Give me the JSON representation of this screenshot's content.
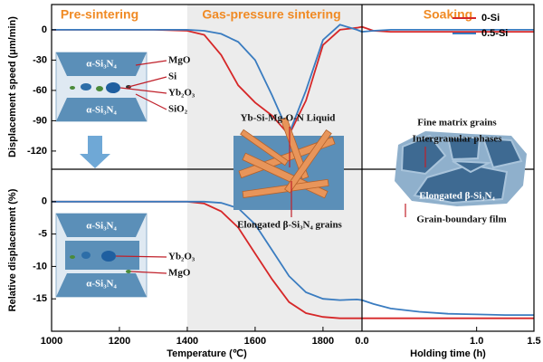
{
  "chart_data": [
    {
      "type": "line",
      "ylabel": "Displacement speed (μm/min)",
      "x": [
        1000,
        1100,
        1200,
        1300,
        1400,
        1450,
        1500,
        1550,
        1600,
        1650,
        1700,
        1750,
        1800,
        1850,
        1900,
        1915
      ],
      "xlim": [
        1000,
        1915
      ],
      "ylim": [
        -138,
        25
      ],
      "yticks": [
        0,
        -30,
        -60,
        -90,
        -120
      ],
      "background_span": [
        1400,
        1915
      ],
      "series": [
        {
          "color": "#d62728",
          "values": [
            0,
            0,
            0,
            0,
            -1,
            -5,
            -25,
            -55,
            -72,
            -85,
            -104,
            -70,
            -15,
            0,
            2,
            3
          ]
        },
        {
          "color": "#3a7cc0",
          "values": [
            0,
            0,
            0,
            0,
            0,
            -1,
            -4,
            -12,
            -30,
            -65,
            -103,
            -60,
            -10,
            5,
            0,
            -2
          ]
        }
      ]
    },
    {
      "type": "line",
      "legend": "upper right",
      "x": [
        0,
        0.1,
        0.25,
        0.5,
        0.75,
        1.0,
        1.25,
        1.5
      ],
      "xlim": [
        0,
        1.5
      ],
      "ylim": [
        -138,
        25
      ],
      "series": [
        {
          "name": "0-Si",
          "color": "#d62728",
          "values": [
            3,
            -1,
            -2,
            -2,
            -2,
            -2,
            -2,
            -2
          ]
        },
        {
          "name": "0.5-Si",
          "color": "#3a7cc0",
          "values": [
            -2,
            -1,
            0,
            0,
            0,
            0,
            0,
            0
          ]
        }
      ]
    },
    {
      "type": "line",
      "xlabel": "Temperature (℃)",
      "ylabel": "Relative displacement (%)",
      "x": [
        1000,
        1100,
        1200,
        1300,
        1400,
        1450,
        1500,
        1550,
        1600,
        1650,
        1700,
        1750,
        1800,
        1850,
        1900,
        1915
      ],
      "xlim": [
        1000,
        1915
      ],
      "xticks": [
        1000,
        1200,
        1400,
        1600,
        1800
      ],
      "ylim": [
        -20,
        5
      ],
      "yticks": [
        0,
        -5,
        -10,
        -15
      ],
      "background_span": [
        1400,
        1915
      ],
      "series": [
        {
          "color": "#d62728",
          "values": [
            0,
            0,
            0,
            0,
            0,
            -0.3,
            -1.5,
            -4,
            -8,
            -12,
            -15.5,
            -17.2,
            -17.8,
            -18,
            -18,
            -18
          ]
        },
        {
          "color": "#3a7cc0",
          "values": [
            0,
            0,
            0,
            0,
            0,
            0,
            -0.2,
            -1,
            -3.5,
            -7.5,
            -11.5,
            -14,
            -15,
            -15.2,
            -15.1,
            -15.2
          ]
        }
      ]
    },
    {
      "type": "line",
      "xlabel": "Holding time (h)",
      "x": [
        0,
        0.1,
        0.25,
        0.5,
        0.75,
        1.0,
        1.25,
        1.5
      ],
      "xlim": [
        0,
        1.5
      ],
      "xticks": [
        {
          "value": 0,
          "label": "0.0"
        },
        {
          "value": 1,
          "label": "1.0"
        },
        1.5
      ],
      "ylim": [
        -20,
        5
      ],
      "series": [
        {
          "color": "#d62728",
          "values": [
            -18,
            -18,
            -18,
            -18,
            -18,
            -18,
            -18,
            -18
          ]
        },
        {
          "color": "#3a7cc0",
          "values": [
            -15.2,
            -15.8,
            -16.5,
            -17,
            -17.3,
            -17.4,
            -17.5,
            -17.5
          ]
        }
      ]
    }
  ],
  "phases": [
    "Pre-sintering",
    "Gas-pressure sintering",
    "Soaking"
  ],
  "top_left_schematic": [
    "α-Si₃N₄",
    "α-Si₃N₄",
    "MgO",
    "Si",
    "Yb₂O₃",
    "SiO₂"
  ],
  "middle_schematic": [
    "Yb-Si-Mg-O-N Liquid",
    "Elongated β-Si₃N₄ grains"
  ],
  "right_schematic": [
    "Fine matrix grains",
    "Intergranular phases",
    "Elongated β-Si₃N₄",
    "Grain-boundary film"
  ],
  "bottom_left_schematic": [
    "α-Si₃N₄",
    "α-Si₃N₄",
    "Yb₂O₃",
    "MgO"
  ]
}
